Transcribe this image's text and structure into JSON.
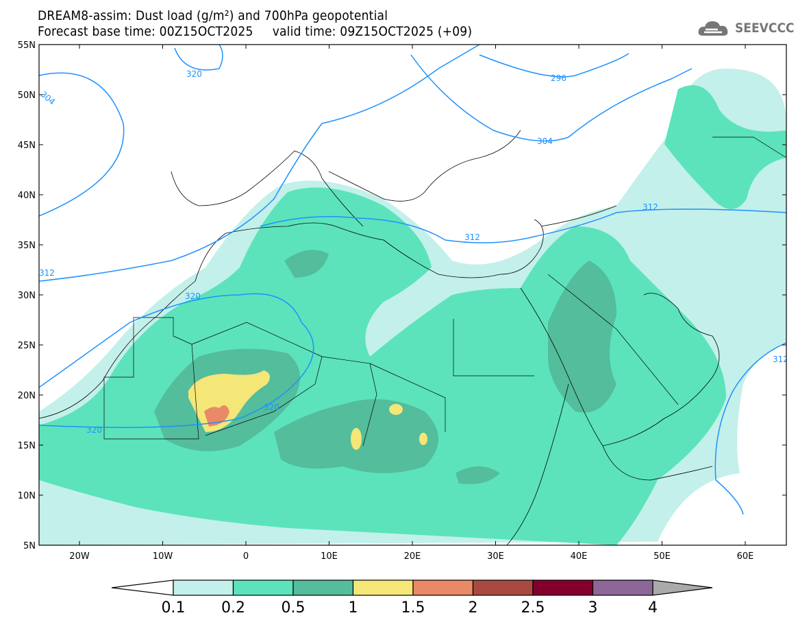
{
  "header": {
    "title_line1": "DREAM8-assim: Dust load (g/m²) and 700hPa geopotential",
    "title_line2": "Forecast base time: 00Z15OCT2025     valid time: 09Z15OCT2025 (+09)",
    "logo_text": "SEEVCCC"
  },
  "axes": {
    "lat_labels": [
      "55N",
      "50N",
      "45N",
      "40N",
      "35N",
      "30N",
      "25N",
      "20N",
      "15N",
      "10N",
      "5N"
    ],
    "lon_labels": [
      "20W",
      "10W",
      "0",
      "10E",
      "20E",
      "30E",
      "40E",
      "50E",
      "60E"
    ]
  },
  "contour_labels": [
    "320",
    "304",
    "296",
    "304",
    "312",
    "312",
    "312",
    "320",
    "320",
    "320",
    "312"
  ],
  "colorbar": {
    "labels": [
      "0.1",
      "0.2",
      "0.5",
      "1",
      "1.5",
      "2",
      "2.5",
      "3",
      "4"
    ],
    "colors": [
      "#c3f0ea",
      "#5ce3bb",
      "#54bd9b",
      "#f5e678",
      "#e98966",
      "#a94a41",
      "#83002d",
      "#8d6797"
    ],
    "under_color": "#ffffff",
    "over_color": "#aaaaaa"
  },
  "colors": {
    "contour": "#1e90ff"
  }
}
